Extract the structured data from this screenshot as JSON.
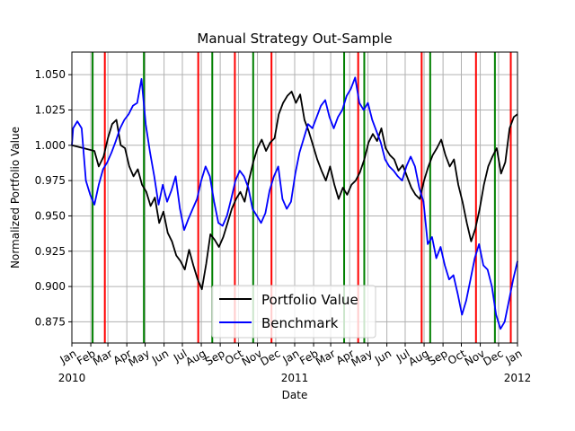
{
  "chart_data": {
    "type": "line",
    "title": "Manual Strategy Out-Sample",
    "xlabel": "Date",
    "ylabel": "Normalized Portfolio Value",
    "xlim": [
      "2010-01-01",
      "2012-01-01"
    ],
    "ylim": [
      0.86,
      1.066
    ],
    "yticks": [
      0.875,
      0.9,
      0.925,
      0.95,
      0.975,
      1.0,
      1.025,
      1.05
    ],
    "ytick_labels": [
      "0.875",
      "0.900",
      "0.925",
      "0.950",
      "0.975",
      "1.000",
      "1.025",
      "1.050"
    ],
    "xticks": [
      {
        "date": "2010-01-01",
        "label": "Jan",
        "year": "2010"
      },
      {
        "date": "2010-02-01",
        "label": "Feb"
      },
      {
        "date": "2010-03-01",
        "label": "Mar"
      },
      {
        "date": "2010-04-01",
        "label": "Apr"
      },
      {
        "date": "2010-05-01",
        "label": "May"
      },
      {
        "date": "2010-06-01",
        "label": "Jun"
      },
      {
        "date": "2010-07-01",
        "label": "Jul"
      },
      {
        "date": "2010-08-01",
        "label": "Aug"
      },
      {
        "date": "2010-09-01",
        "label": "Sep"
      },
      {
        "date": "2010-10-01",
        "label": "Oct"
      },
      {
        "date": "2010-11-01",
        "label": "Nov"
      },
      {
        "date": "2010-12-01",
        "label": "Dec"
      },
      {
        "date": "2011-01-01",
        "label": "Jan",
        "year": "2011"
      },
      {
        "date": "2011-02-01",
        "label": "Feb"
      },
      {
        "date": "2011-03-01",
        "label": "Mar"
      },
      {
        "date": "2011-04-01",
        "label": "Apr"
      },
      {
        "date": "2011-05-01",
        "label": "May"
      },
      {
        "date": "2011-06-01",
        "label": "Jun"
      },
      {
        "date": "2011-07-01",
        "label": "Jul"
      },
      {
        "date": "2011-08-01",
        "label": "Aug"
      },
      {
        "date": "2011-09-01",
        "label": "Sep"
      },
      {
        "date": "2011-10-01",
        "label": "Oct"
      },
      {
        "date": "2011-11-01",
        "label": "Nov"
      },
      {
        "date": "2011-12-01",
        "label": "Dec"
      },
      {
        "date": "2012-01-01",
        "label": "Jan",
        "year": "2012"
      }
    ],
    "grid": true,
    "legend_position": "lower-center",
    "series": [
      {
        "name": "Portfolio Value",
        "color": "#000000",
        "points": [
          [
            "2010-01-01",
            1.0
          ],
          [
            "2010-01-20",
            0.998
          ],
          [
            "2010-02-07",
            0.996
          ],
          [
            "2010-02-14",
            0.985
          ],
          [
            "2010-02-22",
            0.992
          ],
          [
            "2010-03-01",
            1.005
          ],
          [
            "2010-03-08",
            1.015
          ],
          [
            "2010-03-15",
            1.018
          ],
          [
            "2010-03-22",
            1.0
          ],
          [
            "2010-03-29",
            0.998
          ],
          [
            "2010-04-05",
            0.985
          ],
          [
            "2010-04-12",
            0.978
          ],
          [
            "2010-04-19",
            0.983
          ],
          [
            "2010-04-26",
            0.972
          ],
          [
            "2010-05-03",
            0.967
          ],
          [
            "2010-05-10",
            0.957
          ],
          [
            "2010-05-17",
            0.963
          ],
          [
            "2010-05-24",
            0.945
          ],
          [
            "2010-05-31",
            0.953
          ],
          [
            "2010-06-07",
            0.938
          ],
          [
            "2010-06-14",
            0.932
          ],
          [
            "2010-06-21",
            0.922
          ],
          [
            "2010-06-28",
            0.918
          ],
          [
            "2010-07-05",
            0.912
          ],
          [
            "2010-07-12",
            0.926
          ],
          [
            "2010-07-19",
            0.915
          ],
          [
            "2010-07-26",
            0.905
          ],
          [
            "2010-08-02",
            0.898
          ],
          [
            "2010-08-09",
            0.916
          ],
          [
            "2010-08-16",
            0.937
          ],
          [
            "2010-08-23",
            0.933
          ],
          [
            "2010-08-30",
            0.928
          ],
          [
            "2010-09-06",
            0.935
          ],
          [
            "2010-09-13",
            0.945
          ],
          [
            "2010-09-20",
            0.955
          ],
          [
            "2010-09-27",
            0.962
          ],
          [
            "2010-10-04",
            0.967
          ],
          [
            "2010-10-11",
            0.96
          ],
          [
            "2010-10-18",
            0.975
          ],
          [
            "2010-10-25",
            0.988
          ],
          [
            "2010-11-01",
            0.998
          ],
          [
            "2010-11-08",
            1.004
          ],
          [
            "2010-11-15",
            0.996
          ],
          [
            "2010-11-22",
            1.002
          ],
          [
            "2010-11-29",
            1.005
          ],
          [
            "2010-12-06",
            1.022
          ],
          [
            "2010-12-13",
            1.03
          ],
          [
            "2010-12-20",
            1.035
          ],
          [
            "2010-12-27",
            1.038
          ],
          [
            "2011-01-03",
            1.03
          ],
          [
            "2011-01-10",
            1.036
          ],
          [
            "2011-01-17",
            1.018
          ],
          [
            "2011-01-24",
            1.01
          ],
          [
            "2011-01-31",
            1.0
          ],
          [
            "2011-02-07",
            0.99
          ],
          [
            "2011-02-14",
            0.982
          ],
          [
            "2011-02-21",
            0.975
          ],
          [
            "2011-02-28",
            0.985
          ],
          [
            "2011-03-07",
            0.972
          ],
          [
            "2011-03-14",
            0.962
          ],
          [
            "2011-03-21",
            0.97
          ],
          [
            "2011-03-28",
            0.965
          ],
          [
            "2011-04-04",
            0.972
          ],
          [
            "2011-04-11",
            0.975
          ],
          [
            "2011-04-18",
            0.981
          ],
          [
            "2011-04-25",
            0.99
          ],
          [
            "2011-05-02",
            1.002
          ],
          [
            "2011-05-09",
            1.008
          ],
          [
            "2011-05-16",
            1.003
          ],
          [
            "2011-05-23",
            1.012
          ],
          [
            "2011-05-30",
            0.998
          ],
          [
            "2011-06-06",
            0.993
          ],
          [
            "2011-06-13",
            0.99
          ],
          [
            "2011-06-20",
            0.982
          ],
          [
            "2011-06-27",
            0.986
          ],
          [
            "2011-07-04",
            0.978
          ],
          [
            "2011-07-11",
            0.97
          ],
          [
            "2011-07-18",
            0.965
          ],
          [
            "2011-07-25",
            0.962
          ],
          [
            "2011-08-01",
            0.975
          ],
          [
            "2011-08-08",
            0.985
          ],
          [
            "2011-08-15",
            0.993
          ],
          [
            "2011-08-22",
            0.998
          ],
          [
            "2011-08-29",
            1.004
          ],
          [
            "2011-09-05",
            0.993
          ],
          [
            "2011-09-12",
            0.985
          ],
          [
            "2011-09-19",
            0.99
          ],
          [
            "2011-09-26",
            0.972
          ],
          [
            "2011-10-03",
            0.96
          ],
          [
            "2011-10-10",
            0.945
          ],
          [
            "2011-10-17",
            0.932
          ],
          [
            "2011-10-24",
            0.941
          ],
          [
            "2011-10-31",
            0.955
          ],
          [
            "2011-11-07",
            0.972
          ],
          [
            "2011-11-14",
            0.985
          ],
          [
            "2011-11-21",
            0.992
          ],
          [
            "2011-11-28",
            0.998
          ],
          [
            "2011-12-05",
            0.98
          ],
          [
            "2011-12-12",
            0.988
          ],
          [
            "2011-12-19",
            1.012
          ],
          [
            "2011-12-26",
            1.02
          ],
          [
            "2012-01-01",
            1.022
          ]
        ]
      },
      {
        "name": "Benchmark",
        "color": "#0000ff",
        "points": [
          [
            "2010-01-01",
            1.0
          ],
          [
            "2010-01-03",
            1.012
          ],
          [
            "2010-01-10",
            1.017
          ],
          [
            "2010-01-17",
            1.012
          ],
          [
            "2010-01-24",
            0.975
          ],
          [
            "2010-01-31",
            0.965
          ],
          [
            "2010-02-07",
            0.958
          ],
          [
            "2010-02-14",
            0.972
          ],
          [
            "2010-02-21",
            0.983
          ],
          [
            "2010-02-28",
            0.988
          ],
          [
            "2010-03-07",
            0.995
          ],
          [
            "2010-03-14",
            1.003
          ],
          [
            "2010-03-21",
            1.012
          ],
          [
            "2010-03-28",
            1.018
          ],
          [
            "2010-04-04",
            1.022
          ],
          [
            "2010-04-11",
            1.028
          ],
          [
            "2010-04-18",
            1.03
          ],
          [
            "2010-04-25",
            1.047
          ],
          [
            "2010-05-02",
            1.015
          ],
          [
            "2010-05-09",
            0.995
          ],
          [
            "2010-05-16",
            0.978
          ],
          [
            "2010-05-23",
            0.958
          ],
          [
            "2010-05-30",
            0.972
          ],
          [
            "2010-06-06",
            0.96
          ],
          [
            "2010-06-13",
            0.968
          ],
          [
            "2010-06-20",
            0.978
          ],
          [
            "2010-06-27",
            0.955
          ],
          [
            "2010-07-04",
            0.94
          ],
          [
            "2010-07-11",
            0.948
          ],
          [
            "2010-07-18",
            0.955
          ],
          [
            "2010-07-25",
            0.962
          ],
          [
            "2010-08-01",
            0.975
          ],
          [
            "2010-08-08",
            0.985
          ],
          [
            "2010-08-15",
            0.978
          ],
          [
            "2010-08-22",
            0.96
          ],
          [
            "2010-08-29",
            0.945
          ],
          [
            "2010-09-05",
            0.943
          ],
          [
            "2010-09-12",
            0.95
          ],
          [
            "2010-09-19",
            0.962
          ],
          [
            "2010-09-26",
            0.975
          ],
          [
            "2010-10-03",
            0.982
          ],
          [
            "2010-10-10",
            0.978
          ],
          [
            "2010-10-17",
            0.97
          ],
          [
            "2010-10-24",
            0.955
          ],
          [
            "2010-10-31",
            0.95
          ],
          [
            "2010-11-07",
            0.945
          ],
          [
            "2010-11-14",
            0.952
          ],
          [
            "2010-11-21",
            0.968
          ],
          [
            "2010-11-28",
            0.978
          ],
          [
            "2010-12-05",
            0.985
          ],
          [
            "2010-12-12",
            0.962
          ],
          [
            "2010-12-19",
            0.955
          ],
          [
            "2010-12-26",
            0.96
          ],
          [
            "2011-01-02",
            0.98
          ],
          [
            "2011-01-09",
            0.995
          ],
          [
            "2011-01-16",
            1.005
          ],
          [
            "2011-01-23",
            1.015
          ],
          [
            "2011-01-30",
            1.012
          ],
          [
            "2011-02-06",
            1.02
          ],
          [
            "2011-02-13",
            1.028
          ],
          [
            "2011-02-20",
            1.032
          ],
          [
            "2011-02-27",
            1.02
          ],
          [
            "2011-03-06",
            1.012
          ],
          [
            "2011-03-13",
            1.02
          ],
          [
            "2011-03-20",
            1.025
          ],
          [
            "2011-03-27",
            1.035
          ],
          [
            "2011-04-03",
            1.04
          ],
          [
            "2011-04-10",
            1.048
          ],
          [
            "2011-04-17",
            1.03
          ],
          [
            "2011-04-24",
            1.025
          ],
          [
            "2011-05-01",
            1.03
          ],
          [
            "2011-05-08",
            1.018
          ],
          [
            "2011-05-15",
            1.01
          ],
          [
            "2011-05-22",
            1.002
          ],
          [
            "2011-05-29",
            0.99
          ],
          [
            "2011-06-05",
            0.985
          ],
          [
            "2011-06-12",
            0.982
          ],
          [
            "2011-06-19",
            0.978
          ],
          [
            "2011-06-26",
            0.975
          ],
          [
            "2011-07-03",
            0.985
          ],
          [
            "2011-07-10",
            0.992
          ],
          [
            "2011-07-17",
            0.985
          ],
          [
            "2011-07-24",
            0.97
          ],
          [
            "2011-07-31",
            0.96
          ],
          [
            "2011-08-07",
            0.93
          ],
          [
            "2011-08-14",
            0.935
          ],
          [
            "2011-08-21",
            0.92
          ],
          [
            "2011-08-28",
            0.928
          ],
          [
            "2011-09-04",
            0.915
          ],
          [
            "2011-09-11",
            0.905
          ],
          [
            "2011-09-18",
            0.908
          ],
          [
            "2011-09-25",
            0.895
          ],
          [
            "2011-10-02",
            0.88
          ],
          [
            "2011-10-09",
            0.89
          ],
          [
            "2011-10-16",
            0.905
          ],
          [
            "2011-10-23",
            0.92
          ],
          [
            "2011-10-30",
            0.93
          ],
          [
            "2011-11-06",
            0.915
          ],
          [
            "2011-11-13",
            0.912
          ],
          [
            "2011-11-20",
            0.9
          ],
          [
            "2011-11-27",
            0.88
          ],
          [
            "2011-12-04",
            0.87
          ],
          [
            "2011-12-11",
            0.875
          ],
          [
            "2011-12-18",
            0.89
          ],
          [
            "2011-12-25",
            0.905
          ],
          [
            "2012-01-01",
            0.918
          ]
        ]
      }
    ],
    "signal_lines": {
      "long": {
        "color": "#008000",
        "dates": [
          "2010-02-04",
          "2010-04-29",
          "2010-08-19",
          "2010-10-25",
          "2011-03-23",
          "2011-04-25",
          "2011-08-11",
          "2011-11-25"
        ]
      },
      "short": {
        "color": "#ff0000",
        "dates": [
          "2010-02-24",
          "2010-07-27",
          "2010-09-25",
          "2010-11-24",
          "2011-04-15",
          "2011-07-28",
          "2011-10-25",
          "2011-12-21"
        ]
      }
    }
  }
}
